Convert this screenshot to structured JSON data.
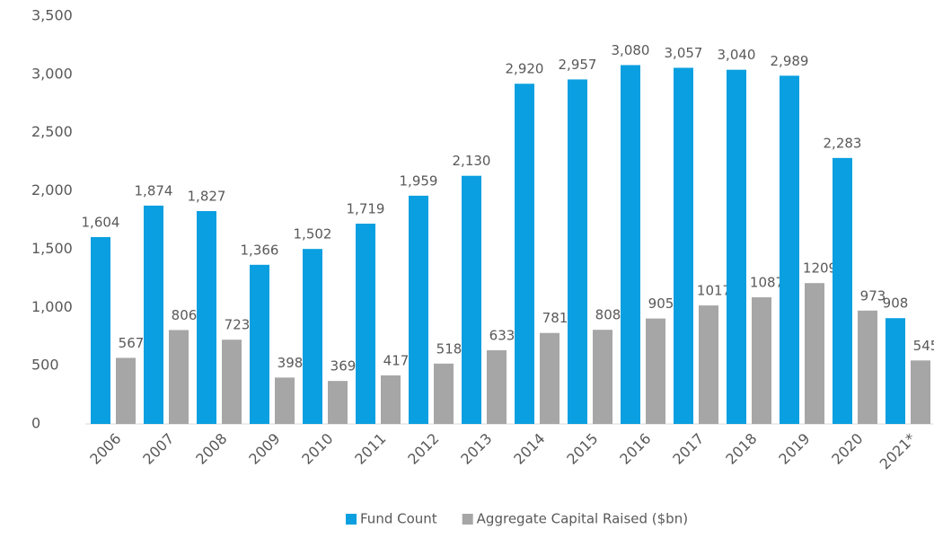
{
  "chart_data": {
    "type": "bar",
    "categories": [
      "2006",
      "2007",
      "2008",
      "2009",
      "2010",
      "2011",
      "2012",
      "2013",
      "2014",
      "2015",
      "2016",
      "2017",
      "2018",
      "2019",
      "2020",
      "2021*"
    ],
    "series": [
      {
        "name": "Fund Count",
        "color": "#0a9fe0",
        "values": [
          1604,
          1874,
          1827,
          1366,
          1502,
          1719,
          1959,
          2130,
          2920,
          2957,
          3080,
          3057,
          3040,
          2989,
          2283,
          908
        ],
        "value_labels": [
          "1,604",
          "1,874",
          "1,827",
          "1,366",
          "1,502",
          "1,719",
          "1,959",
          "2,130",
          "2,920",
          "2,957",
          "3,080",
          "3,057",
          "3,040",
          "2,989",
          "2,283",
          "908"
        ]
      },
      {
        "name": "Aggregate Capital Raised ($bn)",
        "color": "#a6a6a6",
        "values": [
          567,
          806,
          723,
          398,
          369,
          417,
          518,
          633,
          781,
          808,
          905,
          1017,
          1087,
          1209,
          973,
          545
        ]
      }
    ],
    "ylim": [
      0,
      3500
    ],
    "yticks": [
      0,
      500,
      {
        "value": 1000,
        "label": "1,000"
      },
      {
        "value": 1500,
        "label": "1,500"
      },
      {
        "value": 2000,
        "label": "2,000"
      },
      {
        "value": 2500,
        "label": "2,500"
      },
      {
        "value": 3000,
        "label": "3,000"
      },
      {
        "value": 3500,
        "label": "3,500"
      }
    ],
    "legend": "bottom"
  }
}
